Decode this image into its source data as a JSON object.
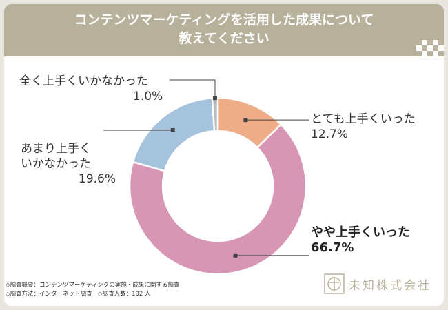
{
  "title_line1": "コンテンツマーケティングを活用した成果について",
  "title_line2": "教えてください",
  "chart_data": {
    "type": "pie",
    "style": "donut",
    "title": "コンテンツマーケティングを活用した成果について教えてください",
    "unit": "%",
    "categories": [
      "とても上手くいった",
      "やや上手くいった",
      "あまり上手くいかなかった",
      "全く上手くいかなかった"
    ],
    "values": [
      12.7,
      66.7,
      19.6,
      1.0
    ],
    "colors": [
      "#eeac87",
      "#d797b4",
      "#a6c3dd",
      "#b8bcbd"
    ]
  },
  "labels": {
    "very_good": {
      "text": "とても上手くいった",
      "value": "12.7%"
    },
    "somewhat_good": {
      "text": "やや上手くいった",
      "value": "66.7%"
    },
    "not_good_line1": "あまり上手く",
    "not_good_line2": "いかなかった",
    "not_good_value": "19.6%",
    "not_at_all": {
      "text": "全く上手くいかなかった",
      "value": "1.0%"
    }
  },
  "footer": {
    "line1": "◇調査概要：コンテンツマーケティングの実施・成果に関する調査",
    "line2": "◇調査方法：インターネット調査　◇調査人数：102 人"
  },
  "brand": {
    "name": "未知株式会社"
  },
  "colors": {
    "header": "#b7b19b",
    "frame_bg": "#e9e6df"
  }
}
